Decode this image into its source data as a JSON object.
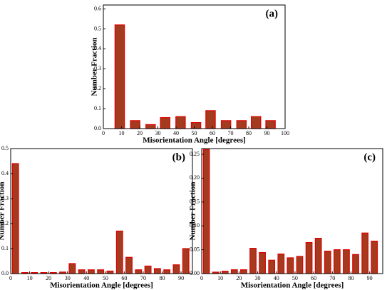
{
  "chart_data": [
    {
      "type": "bar",
      "annotation": "(a)",
      "xlabel": "Misorientation Angle [degrees]",
      "ylabel": "Number Fraction",
      "color": "#a33b1f",
      "x": [
        9,
        17.5,
        26,
        34,
        42.5,
        51,
        59,
        67.5,
        76,
        84,
        92
      ],
      "values": [
        0.52,
        0.04,
        0.02,
        0.055,
        0.06,
        0.03,
        0.09,
        0.04,
        0.04,
        0.06,
        0.04
      ],
      "xlim": [
        0,
        100
      ],
      "ylim": [
        0,
        0.62
      ],
      "xticks": [
        0,
        10,
        20,
        30,
        40,
        50,
        60,
        70,
        80,
        90,
        100
      ],
      "yticks": [
        {
          "value": 0,
          "label": "0.0"
        },
        0.1,
        0.2,
        0.3,
        0.4,
        0.5,
        0.6
      ]
    },
    {
      "type": "bar",
      "annotation": "(b)",
      "xlabel": "Misorientation Angle [degrees]",
      "ylabel": "Number Fraction",
      "color": "#a33b1f",
      "x": [
        2.5,
        7.5,
        12.5,
        17.5,
        22.5,
        27.5,
        32.5,
        37.5,
        42.5,
        47.5,
        52.5,
        57.5,
        62.5,
        67.5,
        72.5,
        77.5,
        82.5,
        87.5,
        92.5
      ],
      "values": [
        0.44,
        0.004,
        0.004,
        0.004,
        0.004,
        0.006,
        0.04,
        0.015,
        0.015,
        0.015,
        0.01,
        0.17,
        0.065,
        0.015,
        0.03,
        0.02,
        0.015,
        0.035,
        0.1
      ],
      "xlim": [
        0,
        96
      ],
      "ylim": [
        0,
        0.5
      ],
      "xticks": [
        0,
        10,
        20,
        30,
        40,
        50,
        60,
        70,
        80,
        90
      ],
      "yticks": [
        {
          "value": 0,
          "label": "0.0"
        },
        0.1,
        0.2,
        0.3,
        0.4,
        0.5
      ]
    },
    {
      "type": "bar",
      "annotation": "(c)",
      "xlabel": "Misorientation Angle [degrees]",
      "ylabel": "Number Fraction",
      "color": "#a33b1f",
      "x": [
        2.5,
        7.5,
        12.5,
        17.5,
        22.5,
        27.5,
        32.5,
        37.5,
        42.5,
        47.5,
        52.5,
        57.5,
        62.5,
        67.5,
        72.5,
        77.5,
        82.5,
        87.5,
        92.5
      ],
      "values": [
        0.26,
        0.003,
        0.005,
        0.008,
        0.008,
        0.053,
        0.044,
        0.028,
        0.041,
        0.033,
        0.036,
        0.065,
        0.074,
        0.047,
        0.05,
        0.05,
        0.04,
        0.085,
        0.068
      ],
      "xlim": [
        0,
        97
      ],
      "ylim": [
        0,
        0.262
      ],
      "xticks": [
        0,
        10,
        20,
        30,
        40,
        50,
        60,
        70,
        80,
        90
      ],
      "yticks": [
        {
          "value": 0,
          "label": "0.00"
        },
        0.05,
        {
          "value": 0.1,
          "label": "0.10"
        },
        0.15,
        {
          "value": 0.2,
          "label": "0.20"
        },
        0.25
      ]
    }
  ]
}
